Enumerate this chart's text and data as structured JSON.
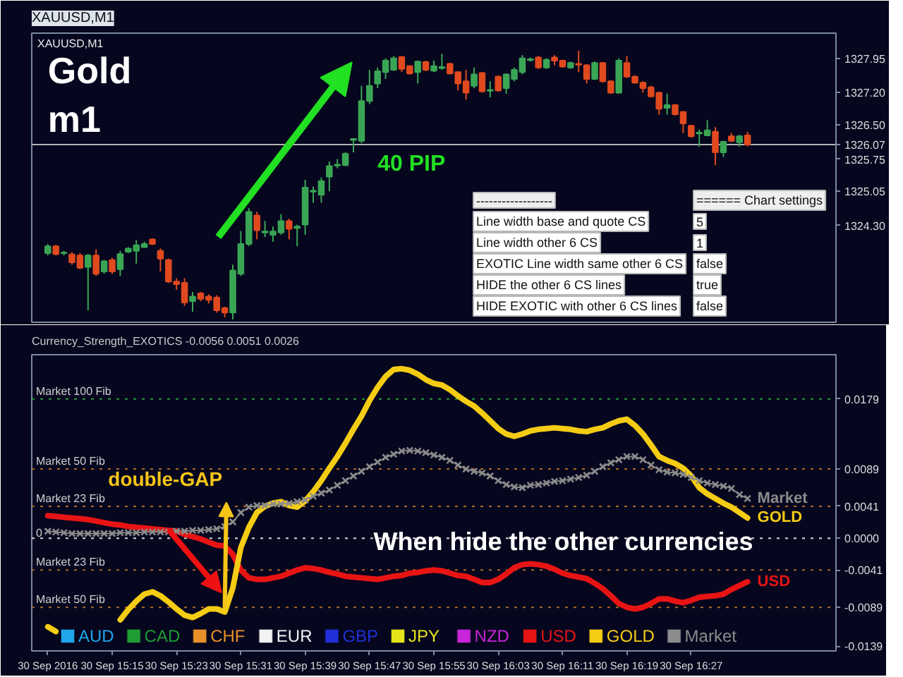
{
  "chart_data": [
    {
      "type": "candlestick",
      "title": "XAUUSD,M1",
      "subtitle": "XAUUSD,M1",
      "x": [
        "2016-09-30T15:07",
        "2016-09-30T15:08",
        "2016-09-30T15:09",
        "2016-09-30T15:10",
        "2016-09-30T15:11",
        "2016-09-30T15:12",
        "2016-09-30T15:13",
        "2016-09-30T15:14",
        "2016-09-30T15:15",
        "2016-09-30T15:16",
        "2016-09-30T15:17",
        "2016-09-30T15:18",
        "2016-09-30T15:19",
        "2016-09-30T15:20",
        "2016-09-30T15:21",
        "2016-09-30T15:22",
        "2016-09-30T15:23",
        "2016-09-30T15:24",
        "2016-09-30T15:25",
        "2016-09-30T15:26",
        "2016-09-30T15:27",
        "2016-09-30T15:28",
        "2016-09-30T15:29",
        "2016-09-30T15:30",
        "2016-09-30T15:31",
        "2016-09-30T15:32",
        "2016-09-30T15:33",
        "2016-09-30T15:34",
        "2016-09-30T15:35",
        "2016-09-30T15:36",
        "2016-09-30T15:37",
        "2016-09-30T15:38",
        "2016-09-30T15:39",
        "2016-09-30T15:40",
        "2016-09-30T15:41",
        "2016-09-30T15:42",
        "2016-09-30T15:43",
        "2016-09-30T15:44",
        "2016-09-30T15:45",
        "2016-09-30T15:46",
        "2016-09-30T15:47",
        "2016-09-30T15:48",
        "2016-09-30T15:49",
        "2016-09-30T15:50",
        "2016-09-30T15:51",
        "2016-09-30T15:52",
        "2016-09-30T15:53",
        "2016-09-30T15:54",
        "2016-09-30T15:55",
        "2016-09-30T15:56",
        "2016-09-30T15:57",
        "2016-09-30T15:58",
        "2016-09-30T15:59",
        "2016-09-30T16:00",
        "2016-09-30T16:01",
        "2016-09-30T16:02",
        "2016-09-30T16:03",
        "2016-09-30T16:04",
        "2016-09-30T16:05",
        "2016-09-30T16:06",
        "2016-09-30T16:07",
        "2016-09-30T16:08",
        "2016-09-30T16:09",
        "2016-09-30T16:10",
        "2016-09-30T16:11",
        "2016-09-30T16:12",
        "2016-09-30T16:13",
        "2016-09-30T16:14",
        "2016-09-30T16:15",
        "2016-09-30T16:16",
        "2016-09-30T16:17",
        "2016-09-30T16:18",
        "2016-09-30T16:19",
        "2016-09-30T16:20",
        "2016-09-30T16:21",
        "2016-09-30T16:22",
        "2016-09-30T16:23",
        "2016-09-30T16:24",
        "2016-09-30T16:25",
        "2016-09-30T16:26",
        "2016-09-30T16:27",
        "2016-09-30T16:28",
        "2016-09-30T16:29",
        "2016-09-30T16:30",
        "2016-09-30T16:31",
        "2016-09-30T16:32",
        "2016-09-30T16:33",
        "2016-09-30T16:34"
      ],
      "ohlc": [
        [
          1323.7,
          1323.9,
          1323.65,
          1323.85
        ],
        [
          1323.85,
          1323.88,
          1323.65,
          1323.68
        ],
        [
          1323.7,
          1323.75,
          1323.65,
          1323.71
        ],
        [
          1323.67,
          1323.72,
          1323.45,
          1323.5
        ],
        [
          1323.65,
          1323.7,
          1323.35,
          1323.38
        ],
        [
          1323.4,
          1323.68,
          1322.45,
          1323.65
        ],
        [
          1323.65,
          1323.78,
          1323.2,
          1323.25
        ],
        [
          1323.3,
          1323.55,
          1323.25,
          1323.52
        ],
        [
          1323.55,
          1323.6,
          1323.25,
          1323.3
        ],
        [
          1323.35,
          1323.75,
          1323.2,
          1323.68
        ],
        [
          1323.73,
          1323.83,
          1323.7,
          1323.8
        ],
        [
          1323.75,
          1323.98,
          1323.47,
          1323.87
        ],
        [
          1323.83,
          1323.95,
          1323.82,
          1323.9
        ],
        [
          1324.0,
          1324.02,
          1323.88,
          1323.9
        ],
        [
          1323.75,
          1323.8,
          1323.3,
          1323.58
        ],
        [
          1323.55,
          1323.58,
          1323.05,
          1323.08
        ],
        [
          1323.08,
          1323.15,
          1322.9,
          1323.02
        ],
        [
          1323.05,
          1323.15,
          1322.55,
          1322.62
        ],
        [
          1322.65,
          1322.85,
          1322.42,
          1322.75
        ],
        [
          1322.82,
          1322.85,
          1322.65,
          1322.7
        ],
        [
          1322.75,
          1322.8,
          1322.6,
          1322.68
        ],
        [
          1322.73,
          1322.78,
          1322.4,
          1322.45
        ],
        [
          1322.5,
          1322.53,
          1322.3,
          1322.4
        ],
        [
          1322.4,
          1323.45,
          1322.25,
          1323.32
        ],
        [
          1323.25,
          1324.18,
          1323.2,
          1323.9
        ],
        [
          1323.9,
          1324.68,
          1323.85,
          1324.6
        ],
        [
          1324.52,
          1324.6,
          1324.0,
          1324.2
        ],
        [
          1324.15,
          1324.4,
          1324.05,
          1324.17
        ],
        [
          1324.1,
          1324.28,
          1323.95,
          1324.17
        ],
        [
          1324.15,
          1324.55,
          1324.1,
          1324.4
        ],
        [
          1324.4,
          1324.45,
          1324.0,
          1324.23
        ],
        [
          1324.25,
          1324.32,
          1323.85,
          1324.28
        ],
        [
          1324.32,
          1325.3,
          1324.1,
          1325.13
        ],
        [
          1325.04,
          1325.15,
          1324.8,
          1325.06
        ],
        [
          1324.97,
          1325.35,
          1324.8,
          1325.27
        ],
        [
          1325.37,
          1325.7,
          1325.05,
          1325.6
        ],
        [
          1325.61,
          1325.75,
          1325.55,
          1325.63
        ],
        [
          1325.62,
          1325.9,
          1325.6,
          1325.87
        ],
        [
          1326.17,
          1326.2,
          1325.9,
          1326.19
        ],
        [
          1326.15,
          1327.35,
          1326.1,
          1327.02
        ],
        [
          1327.02,
          1327.7,
          1326.95,
          1327.35
        ],
        [
          1327.4,
          1327.75,
          1327.3,
          1327.67
        ],
        [
          1327.65,
          1327.95,
          1327.5,
          1327.9
        ],
        [
          1327.7,
          1328.0,
          1327.68,
          1327.95
        ],
        [
          1327.98,
          1328.0,
          1327.65,
          1327.72
        ],
        [
          1327.78,
          1327.8,
          1327.6,
          1327.62
        ],
        [
          1327.65,
          1327.9,
          1327.4,
          1327.88
        ],
        [
          1327.87,
          1327.9,
          1327.67,
          1327.7
        ],
        [
          1327.68,
          1327.9,
          1327.65,
          1327.78
        ],
        [
          1327.74,
          1328.05,
          1327.7,
          1327.76
        ],
        [
          1327.83,
          1327.85,
          1327.6,
          1327.62
        ],
        [
          1327.65,
          1327.67,
          1327.25,
          1327.4
        ],
        [
          1327.45,
          1327.7,
          1327.05,
          1327.2
        ],
        [
          1327.35,
          1327.75,
          1327.3,
          1327.6
        ],
        [
          1327.63,
          1327.65,
          1327.2,
          1327.23
        ],
        [
          1327.24,
          1327.45,
          1327.1,
          1327.26
        ],
        [
          1327.55,
          1327.58,
          1327.22,
          1327.25
        ],
        [
          1327.3,
          1327.62,
          1327.18,
          1327.6
        ],
        [
          1327.5,
          1327.75,
          1327.45,
          1327.7
        ],
        [
          1327.65,
          1328.02,
          1327.6,
          1327.95
        ],
        [
          1327.91,
          1327.97,
          1327.88,
          1327.93
        ],
        [
          1327.97,
          1328.0,
          1327.72,
          1327.75
        ],
        [
          1327.75,
          1327.95,
          1327.72,
          1327.92
        ],
        [
          1327.97,
          1328.02,
          1327.8,
          1327.9
        ],
        [
          1327.9,
          1327.92,
          1327.75,
          1327.77
        ],
        [
          1327.75,
          1327.88,
          1327.72,
          1327.85
        ],
        [
          1327.83,
          1328.12,
          1327.65,
          1327.81
        ],
        [
          1327.8,
          1327.82,
          1327.4,
          1327.5
        ],
        [
          1327.5,
          1327.88,
          1327.48,
          1327.85
        ],
        [
          1327.85,
          1327.87,
          1327.42,
          1327.45
        ],
        [
          1327.45,
          1327.47,
          1327.18,
          1327.2
        ],
        [
          1327.2,
          1327.95,
          1327.18,
          1327.9
        ],
        [
          1327.85,
          1328.0,
          1327.52,
          1327.55
        ],
        [
          1327.55,
          1327.58,
          1327.4,
          1327.42
        ],
        [
          1327.42,
          1327.45,
          1327.2,
          1327.3
        ],
        [
          1327.32,
          1327.35,
          1327.1,
          1327.12
        ],
        [
          1327.2,
          1327.22,
          1326.72,
          1326.85
        ],
        [
          1326.87,
          1327.18,
          1326.72,
          1326.93
        ],
        [
          1326.93,
          1326.95,
          1326.7,
          1326.73
        ],
        [
          1326.78,
          1326.8,
          1326.32,
          1326.53
        ],
        [
          1326.48,
          1326.5,
          1326.22,
          1326.25
        ],
        [
          1326.31,
          1326.4,
          1326.02,
          1326.33
        ],
        [
          1326.27,
          1326.6,
          1326.25,
          1326.38
        ],
        [
          1326.35,
          1326.45,
          1325.62,
          1325.9
        ],
        [
          1325.9,
          1326.15,
          1325.8,
          1326.13
        ],
        [
          1326.25,
          1326.32,
          1326.12,
          1326.15
        ],
        [
          1326.12,
          1326.28,
          1326.02,
          1326.25
        ],
        [
          1326.27,
          1326.35,
          1326.03,
          1326.07
        ]
      ],
      "colors": [
        "#3aa655",
        "#e04a1e",
        "#3aa655",
        "#e04a1e",
        "#e04a1e",
        "#3aa655",
        "#e04a1e",
        "#3aa655",
        "#e04a1e",
        "#3aa655",
        "#3aa655",
        "#3aa655",
        "#3aa655",
        "#e04a1e",
        "#e04a1e",
        "#e04a1e",
        "#e04a1e",
        "#e04a1e",
        "#3aa655",
        "#e04a1e",
        "#e04a1e",
        "#e04a1e",
        "#e04a1e",
        "#3aa655",
        "#3aa655",
        "#3aa655",
        "#e04a1e",
        "#3aa655",
        "#3aa655",
        "#3aa655",
        "#e04a1e",
        "#3aa655",
        "#3aa655",
        "#3aa655",
        "#3aa655",
        "#3aa655",
        "#3aa655",
        "#3aa655",
        "#3aa655",
        "#3aa655",
        "#3aa655",
        "#3aa655",
        "#3aa655",
        "#3aa655",
        "#e04a1e",
        "#e04a1e",
        "#3aa655",
        "#e04a1e",
        "#3aa655",
        "#3aa655",
        "#e04a1e",
        "#e04a1e",
        "#e04a1e",
        "#3aa655",
        "#e04a1e",
        "#3aa655",
        "#e04a1e",
        "#3aa655",
        "#3aa655",
        "#3aa655",
        "#3aa655",
        "#e04a1e",
        "#3aa655",
        "#e04a1e",
        "#e04a1e",
        "#3aa655",
        "#e04a1e",
        "#e04a1e",
        "#3aa655",
        "#e04a1e",
        "#e04a1e",
        "#3aa655",
        "#e04a1e",
        "#e04a1e",
        "#e04a1e",
        "#e04a1e",
        "#e04a1e",
        "#3aa655",
        "#e04a1e",
        "#e04a1e",
        "#e04a1e",
        "#3aa655",
        "#3aa655",
        "#e04a1e",
        "#3aa655",
        "#e04a1e",
        "#3aa655",
        "#e04a1e"
      ],
      "xlim": [
        "2016-09-30T15:05",
        "2016-09-30T16:45"
      ],
      "ylim": [
        1322.19,
        1328.5
      ],
      "yticks": [
        1327.95,
        {
          "value": 1327.2,
          "label": "1327.20"
        },
        {
          "value": 1326.5,
          "label": "1326.50"
        },
        1326.07,
        1325.75,
        1325.05,
        {
          "value": 1324.3,
          "label": "1324.30"
        }
      ],
      "ref_lines": [
        {
          "axis": "y",
          "value": 1326.07,
          "color": "#b4b4b4"
        }
      ],
      "tick_labels": "y",
      "annotations": [
        "Gold",
        "m1",
        "40 PIP",
        "------------------",
        "====== Chart settings",
        "Line width base and quote CS",
        "5",
        "Line width other 6 CS",
        "1",
        "EXOTIC Line width same other 6 CS",
        "false",
        "HIDE the other 6 CS lines",
        "true",
        "HIDE EXOTIC with other 6 CS lines",
        "false"
      ]
    },
    {
      "type": "line",
      "title": "Currency_Strength_EXOTICS -0.0056 0.0051 0.0026",
      "x": [
        "2016-09-30T15:07",
        "2016-09-30T15:08",
        "2016-09-30T15:09",
        "2016-09-30T15:10",
        "2016-09-30T15:11",
        "2016-09-30T15:12",
        "2016-09-30T15:13",
        "2016-09-30T15:14",
        "2016-09-30T15:15",
        "2016-09-30T15:16",
        "2016-09-30T15:17",
        "2016-09-30T15:18",
        "2016-09-30T15:19",
        "2016-09-30T15:20",
        "2016-09-30T15:21",
        "2016-09-30T15:22",
        "2016-09-30T15:23",
        "2016-09-30T15:24",
        "2016-09-30T15:25",
        "2016-09-30T15:26",
        "2016-09-30T15:27",
        "2016-09-30T15:28",
        "2016-09-30T15:29",
        "2016-09-30T15:30",
        "2016-09-30T15:31",
        "2016-09-30T15:32",
        "2016-09-30T15:33",
        "2016-09-30T15:34",
        "2016-09-30T15:35",
        "2016-09-30T15:36",
        "2016-09-30T15:37",
        "2016-09-30T15:38",
        "2016-09-30T15:39",
        "2016-09-30T15:40",
        "2016-09-30T15:41",
        "2016-09-30T15:42",
        "2016-09-30T15:43",
        "2016-09-30T15:44",
        "2016-09-30T15:45",
        "2016-09-30T15:46",
        "2016-09-30T15:47",
        "2016-09-30T15:48",
        "2016-09-30T15:49",
        "2016-09-30T15:50",
        "2016-09-30T15:51",
        "2016-09-30T15:52",
        "2016-09-30T15:53",
        "2016-09-30T15:54",
        "2016-09-30T15:55",
        "2016-09-30T15:56",
        "2016-09-30T15:57",
        "2016-09-30T15:58",
        "2016-09-30T15:59",
        "2016-09-30T16:00",
        "2016-09-30T16:01",
        "2016-09-30T16:02",
        "2016-09-30T16:03",
        "2016-09-30T16:04",
        "2016-09-30T16:05",
        "2016-09-30T16:06",
        "2016-09-30T16:07",
        "2016-09-30T16:08",
        "2016-09-30T16:09",
        "2016-09-30T16:10",
        "2016-09-30T16:11",
        "2016-09-30T16:12",
        "2016-09-30T16:13",
        "2016-09-30T16:14",
        "2016-09-30T16:15",
        "2016-09-30T16:16",
        "2016-09-30T16:17",
        "2016-09-30T16:18",
        "2016-09-30T16:19",
        "2016-09-30T16:20",
        "2016-09-30T16:21",
        "2016-09-30T16:22",
        "2016-09-30T16:23",
        "2016-09-30T16:24",
        "2016-09-30T16:25",
        "2016-09-30T16:26",
        "2016-09-30T16:27",
        "2016-09-30T16:28",
        "2016-09-30T16:29",
        "2016-09-30T16:30",
        "2016-09-30T16:31",
        "2016-09-30T16:32",
        "2016-09-30T16:33",
        "2016-09-30T16:34"
      ],
      "series": [
        {
          "name": "AUD",
          "color": "#1ea5ea",
          "values": [
            null,
            null,
            null,
            null,
            null,
            null,
            null,
            null,
            null,
            null,
            null,
            null,
            null,
            null,
            null,
            null,
            null,
            null,
            null,
            null,
            null,
            null,
            null,
            null,
            null,
            null,
            null,
            null,
            null,
            null,
            null,
            null,
            null,
            null,
            null,
            null,
            null,
            null,
            null,
            null,
            null,
            null,
            null,
            null,
            null,
            null,
            null,
            null,
            null,
            null,
            null,
            null,
            null,
            null,
            null,
            null,
            null,
            null,
            null,
            null,
            null,
            null,
            null,
            null,
            null,
            null,
            null,
            null,
            null,
            null,
            null,
            null,
            null,
            null,
            null,
            null,
            null,
            null,
            null,
            null,
            null,
            null,
            null,
            null,
            null,
            null,
            null,
            null
          ]
        },
        {
          "name": "CAD",
          "color": "#1f9d34",
          "values": [
            null,
            null,
            null,
            null,
            null,
            null,
            null,
            null,
            null,
            null,
            null,
            null,
            null,
            null,
            null,
            null,
            null,
            null,
            null,
            null,
            null,
            null,
            null,
            null,
            null,
            null,
            null,
            null,
            null,
            null,
            null,
            null,
            null,
            null,
            null,
            null,
            null,
            null,
            null,
            null,
            null,
            null,
            null,
            null,
            null,
            null,
            null,
            null,
            null,
            null,
            null,
            null,
            null,
            null,
            null,
            null,
            null,
            null,
            null,
            null,
            null,
            null,
            null,
            null,
            null,
            null,
            null,
            null,
            null,
            null,
            null,
            null,
            null,
            null,
            null,
            null,
            null,
            null,
            null,
            null,
            null,
            null,
            null,
            null,
            null,
            null,
            null,
            null
          ]
        },
        {
          "name": "CHF",
          "color": "#e8912a",
          "values": [
            null,
            null,
            null,
            null,
            null,
            null,
            null,
            null,
            null,
            null,
            null,
            null,
            null,
            null,
            null,
            null,
            null,
            null,
            null,
            null,
            null,
            null,
            null,
            null,
            null,
            null,
            null,
            null,
            null,
            null,
            null,
            null,
            null,
            null,
            null,
            null,
            null,
            null,
            null,
            null,
            null,
            null,
            null,
            null,
            null,
            null,
            null,
            null,
            null,
            null,
            null,
            null,
            null,
            null,
            null,
            null,
            null,
            null,
            null,
            null,
            null,
            null,
            null,
            null,
            null,
            null,
            null,
            null,
            null,
            null,
            null,
            null,
            null,
            null,
            null,
            null,
            null,
            null,
            null,
            null,
            null,
            null,
            null,
            null,
            null,
            null,
            null,
            null
          ]
        },
        {
          "name": "EUR",
          "color": "#f2f2f2",
          "values": [
            null,
            null,
            null,
            null,
            null,
            null,
            null,
            null,
            null,
            null,
            null,
            null,
            null,
            null,
            null,
            null,
            null,
            null,
            null,
            null,
            null,
            null,
            null,
            null,
            null,
            null,
            null,
            null,
            null,
            null,
            null,
            null,
            null,
            null,
            null,
            null,
            null,
            null,
            null,
            null,
            null,
            null,
            null,
            null,
            null,
            null,
            null,
            null,
            null,
            null,
            null,
            null,
            null,
            null,
            null,
            null,
            null,
            null,
            null,
            null,
            null,
            null,
            null,
            null,
            null,
            null,
            null,
            null,
            null,
            null,
            null,
            null,
            null,
            null,
            null,
            null,
            null,
            null,
            null,
            null,
            null,
            null,
            null,
            null,
            null,
            null,
            null,
            null
          ]
        },
        {
          "name": "GBP",
          "color": "#2030d8",
          "values": [
            null,
            null,
            null,
            null,
            null,
            null,
            null,
            null,
            null,
            null,
            null,
            null,
            null,
            null,
            null,
            null,
            null,
            null,
            null,
            null,
            null,
            null,
            null,
            null,
            null,
            null,
            null,
            null,
            null,
            null,
            null,
            null,
            null,
            null,
            null,
            null,
            null,
            null,
            null,
            null,
            null,
            null,
            null,
            null,
            null,
            null,
            null,
            null,
            null,
            null,
            null,
            null,
            null,
            null,
            null,
            null,
            null,
            null,
            null,
            null,
            null,
            null,
            null,
            null,
            null,
            null,
            null,
            null,
            null,
            null,
            null,
            null,
            null,
            null,
            null,
            null,
            null,
            null,
            null,
            null,
            null,
            null,
            null,
            null,
            null,
            null,
            null,
            null
          ]
        },
        {
          "name": "JPY",
          "color": "#e6e31a",
          "values": [
            null,
            null,
            null,
            null,
            null,
            null,
            null,
            null,
            null,
            null,
            null,
            null,
            null,
            null,
            null,
            null,
            null,
            null,
            null,
            null,
            null,
            null,
            null,
            null,
            null,
            null,
            null,
            null,
            null,
            null,
            null,
            null,
            null,
            null,
            null,
            null,
            null,
            null,
            null,
            null,
            null,
            null,
            null,
            null,
            null,
            null,
            null,
            null,
            null,
            null,
            null,
            null,
            null,
            null,
            null,
            null,
            null,
            null,
            null,
            null,
            null,
            null,
            null,
            null,
            null,
            null,
            null,
            null,
            null,
            null,
            null,
            null,
            null,
            null,
            null,
            null,
            null,
            null,
            null,
            null,
            null,
            null,
            null,
            null,
            null,
            null,
            null,
            null
          ]
        },
        {
          "name": "NZD",
          "color": "#c824d8",
          "values": [
            null,
            null,
            null,
            null,
            null,
            null,
            null,
            null,
            null,
            null,
            null,
            null,
            null,
            null,
            null,
            null,
            null,
            null,
            null,
            null,
            null,
            null,
            null,
            null,
            null,
            null,
            null,
            null,
            null,
            null,
            null,
            null,
            null,
            null,
            null,
            null,
            null,
            null,
            null,
            null,
            null,
            null,
            null,
            null,
            null,
            null,
            null,
            null,
            null,
            null,
            null,
            null,
            null,
            null,
            null,
            null,
            null,
            null,
            null,
            null,
            null,
            null,
            null,
            null,
            null,
            null,
            null,
            null,
            null,
            null,
            null,
            null,
            null,
            null,
            null,
            null,
            null,
            null,
            null,
            null,
            null,
            null,
            null,
            null,
            null,
            null,
            null,
            null
          ]
        },
        {
          "name": "USD",
          "color": "#e81414",
          "values": [
            0.0029,
            0.0028,
            0.0027,
            0.0026,
            0.0025,
            0.0024,
            0.0022,
            0.002,
            0.0018,
            0.0017,
            0.0015,
            0.0014,
            0.0013,
            0.0012,
            0.0011,
            0.001,
            0.0009,
            0.0005,
            0.0002,
            -0.0001,
            -0.0005,
            -0.0009,
            -0.001,
            -0.0021,
            -0.0041,
            -0.0051,
            -0.0053,
            -0.0053,
            -0.0051,
            -0.0049,
            -0.0045,
            -0.0041,
            -0.0038,
            -0.0039,
            -0.0041,
            -0.0044,
            -0.0046,
            -0.0049,
            -0.005,
            -0.0051,
            -0.0052,
            -0.0053,
            -0.0051,
            -0.0049,
            -0.0048,
            -0.0045,
            -0.0044,
            -0.0042,
            -0.0041,
            -0.0042,
            -0.0045,
            -0.0048,
            -0.0049,
            -0.0053,
            -0.0057,
            -0.0057,
            -0.0053,
            -0.0046,
            -0.0038,
            -0.0034,
            -0.0033,
            -0.0034,
            -0.0036,
            -0.004,
            -0.0045,
            -0.0048,
            -0.005,
            -0.0052,
            -0.0058,
            -0.0065,
            -0.0074,
            -0.0084,
            -0.0089,
            -0.0091,
            -0.0089,
            -0.0084,
            -0.0078,
            -0.0078,
            -0.0081,
            -0.0083,
            -0.008,
            -0.0076,
            -0.0075,
            -0.0074,
            -0.0072,
            -0.0066,
            -0.0061,
            -0.0056
          ]
        },
        {
          "name": "GOLD",
          "color": "#f5cc14",
          "values": [
            -0.0114,
            -0.012,
            null,
            null,
            null,
            null,
            null,
            null,
            null,
            -0.0105,
            -0.0092,
            -0.0081,
            -0.0072,
            -0.0069,
            -0.0074,
            -0.0082,
            -0.0091,
            -0.0099,
            -0.0102,
            -0.0097,
            -0.0091,
            -0.0091,
            -0.0095,
            -0.0064,
            -0.0012,
            0.0014,
            0.0033,
            0.0041,
            0.0045,
            0.0047,
            0.0042,
            0.004,
            0.0048,
            0.006,
            0.0074,
            0.009,
            0.0105,
            0.0122,
            0.014,
            0.0157,
            0.0177,
            0.0194,
            0.0208,
            0.0217,
            0.0218,
            0.0216,
            0.0211,
            0.0204,
            0.0199,
            0.0197,
            0.0191,
            0.0183,
            0.0176,
            0.017,
            0.0161,
            0.0151,
            0.0141,
            0.0134,
            0.0131,
            0.0134,
            0.0138,
            0.014,
            0.0141,
            0.0142,
            0.0141,
            0.014,
            0.0138,
            0.0137,
            0.014,
            0.0142,
            0.0147,
            0.0151,
            0.0153,
            0.0145,
            0.0134,
            0.012,
            0.0105,
            0.01,
            0.0096,
            0.009,
            0.008,
            0.0065,
            0.0057,
            0.0051,
            0.0045,
            0.004,
            0.0033,
            0.0026
          ]
        },
        {
          "name": "Market",
          "color": "#8c8c8c",
          "marker": "cross",
          "values": [
            0.0009,
            0.0008,
            0.0007,
            0.0006,
            0.0006,
            0.0006,
            0.0006,
            0.0006,
            0.0006,
            0.0007,
            0.0007,
            0.0007,
            0.0008,
            0.0008,
            0.0008,
            0.0008,
            0.0009,
            0.0009,
            0.001,
            0.001,
            0.0011,
            0.0012,
            0.0015,
            0.0021,
            0.0033,
            0.004,
            0.0042,
            0.0042,
            0.0044,
            0.0044,
            0.0045,
            0.0047,
            0.0049,
            0.0054,
            0.0058,
            0.0062,
            0.0068,
            0.0074,
            0.008,
            0.0086,
            0.0092,
            0.0098,
            0.0104,
            0.0108,
            0.0112,
            0.0113,
            0.0112,
            0.011,
            0.0107,
            0.0104,
            0.01,
            0.0094,
            0.0089,
            0.0086,
            0.0084,
            0.008,
            0.0074,
            0.0069,
            0.0066,
            0.0065,
            0.0068,
            0.0069,
            0.0071,
            0.0073,
            0.0074,
            0.0076,
            0.0078,
            0.0081,
            0.0086,
            0.0092,
            0.0097,
            0.0101,
            0.0105,
            0.0105,
            0.0101,
            0.0094,
            0.0088,
            0.0085,
            0.0084,
            0.0082,
            0.0078,
            0.0074,
            0.0071,
            0.0069,
            0.0067,
            0.0064,
            0.0056,
            0.0051
          ]
        }
      ],
      "xlim": [
        "2016-09-30T15:05",
        "2016-09-30T16:45"
      ],
      "xticks": [
        {
          "value": "2016-09-30T15:07",
          "label": "30 Sep 2016"
        },
        {
          "value": "2016-09-30T15:15",
          "label": "30 Sep 15:15"
        },
        {
          "value": "2016-09-30T15:23",
          "label": "30 Sep 15:23"
        },
        {
          "value": "2016-09-30T15:31",
          "label": "30 Sep 15:31"
        },
        {
          "value": "2016-09-30T15:39",
          "label": "30 Sep 15:39"
        },
        {
          "value": "2016-09-30T15:47",
          "label": "30 Sep 15:47"
        },
        {
          "value": "2016-09-30T15:55",
          "label": "30 Sep 15:55"
        },
        {
          "value": "2016-09-30T16:03",
          "label": "30 Sep 16:03"
        },
        {
          "value": "2016-09-30T16:11",
          "label": "30 Sep 16:11"
        },
        {
          "value": "2016-09-30T16:19",
          "label": "30 Sep 16:19"
        },
        {
          "value": "2016-09-30T16:27",
          "label": "30 Sep 16:27"
        }
      ],
      "ylim": [
        -0.0145,
        0.0236
      ],
      "yticks": [
        0.0179,
        0.0089,
        0.0041,
        {
          "value": 0,
          "label": "0.0000"
        },
        -0.0041,
        -0.0089,
        -0.0139
      ],
      "ref_lines": [
        {
          "axis": "y",
          "value": 0.0179,
          "label": "Market 100 Fib",
          "color": "#2a9a3a",
          "line_style": "dotted"
        },
        {
          "axis": "y",
          "value": 0.0089,
          "label": "Market 50 Fib",
          "color": "#b06a28",
          "line_style": "dotted"
        },
        {
          "axis": "y",
          "value": 0.0041,
          "label": "Market 23 Fib",
          "color": "#b06a28",
          "line_style": "dotted"
        },
        {
          "axis": "y",
          "value": 0,
          "label": "0",
          "color": "#d8d8d8",
          "line_style": "dotted"
        },
        {
          "axis": "y",
          "value": -0.0041,
          "label": "Market 23 Fib",
          "color": "#b06a28",
          "line_style": "dotted"
        },
        {
          "axis": "y",
          "value": -0.0089,
          "label": "Market 50 Fib",
          "color": "#b06a28",
          "line_style": "dotted"
        }
      ],
      "legend": "bottom left",
      "annotations": [
        {
          "text": "double-GAP",
          "x": "2016-09-30T15:29",
          "y": -0.0095
        },
        "When hide the other currencies"
      ]
    }
  ]
}
